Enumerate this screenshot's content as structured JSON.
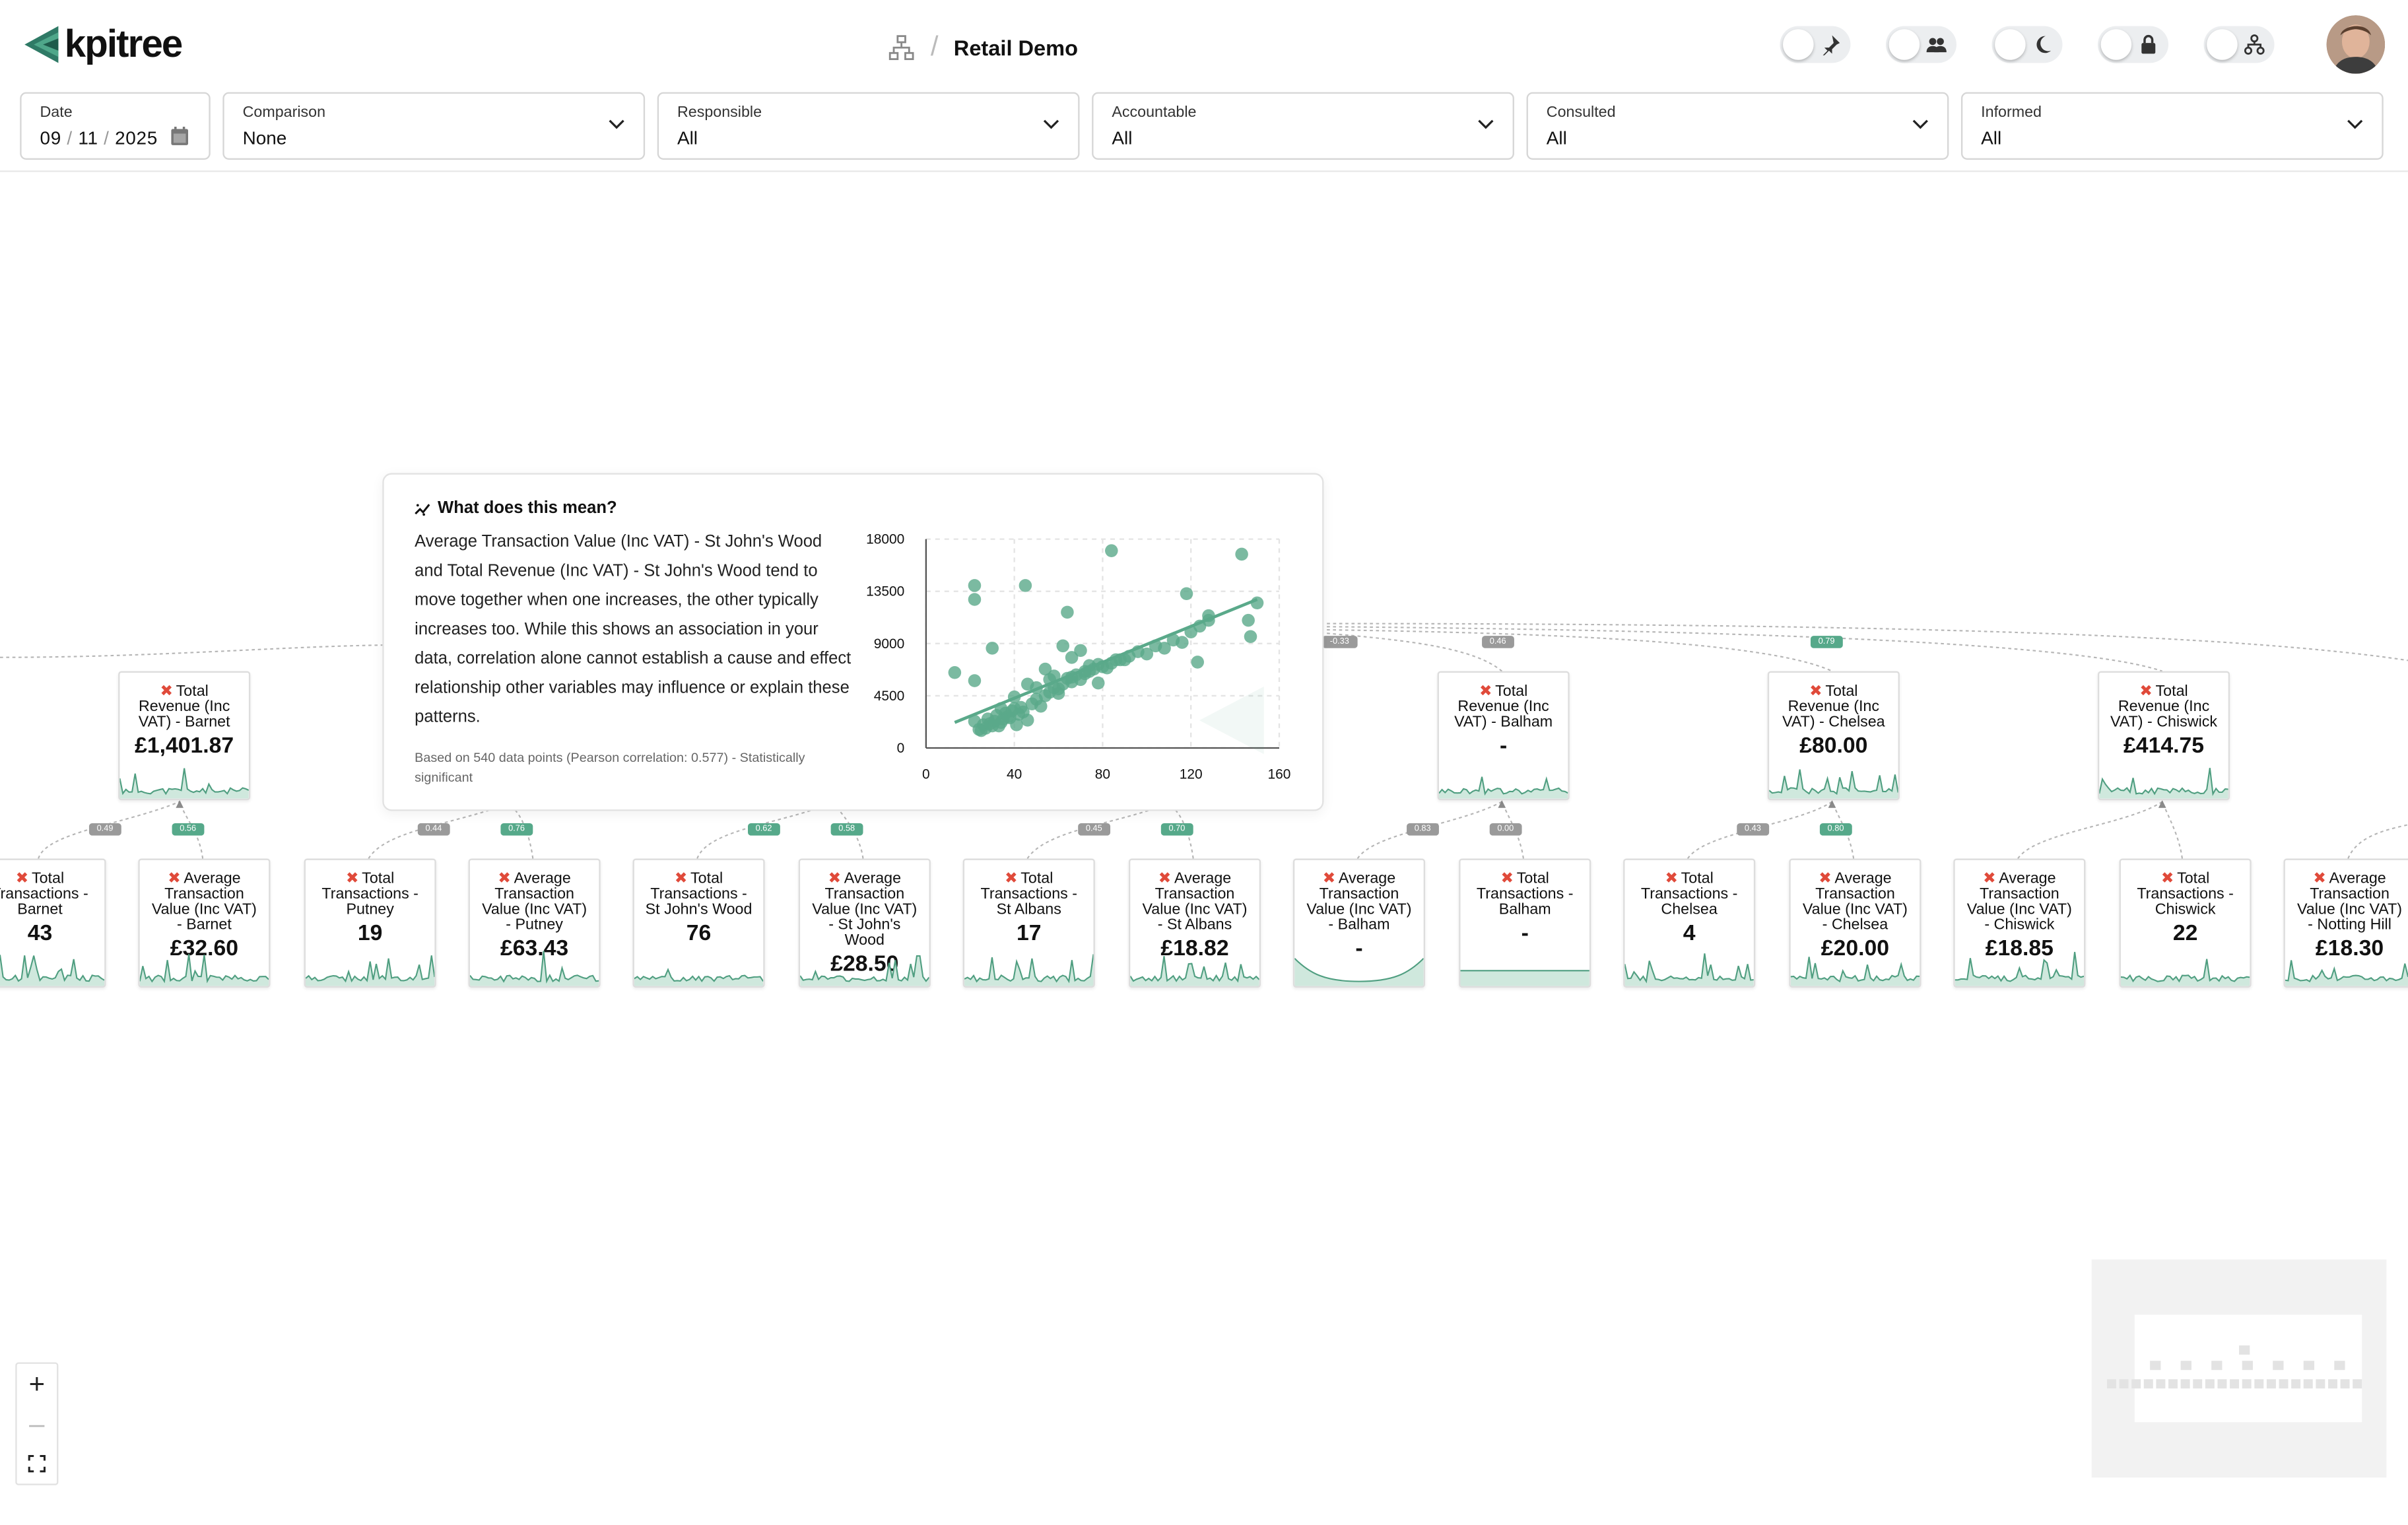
{
  "app": {
    "name": "kpitree"
  },
  "breadcrumb": {
    "title": "Retail Demo"
  },
  "toggles": [
    {
      "name": "pin",
      "icon": "pin-icon"
    },
    {
      "name": "people",
      "icon": "people-icon"
    },
    {
      "name": "dark-mode",
      "icon": "moon-icon"
    },
    {
      "name": "lock",
      "icon": "lock-icon"
    },
    {
      "name": "hierarchy",
      "icon": "hierarchy-icon"
    }
  ],
  "filters": {
    "date": {
      "label": "Date",
      "day": "09",
      "month": "11",
      "year": "2025"
    },
    "comparison": {
      "label": "Comparison",
      "value": "None"
    },
    "responsible": {
      "label": "Responsible",
      "value": "All"
    },
    "accountable": {
      "label": "Accountable",
      "value": "All"
    },
    "consulted": {
      "label": "Consulted",
      "value": "All"
    },
    "informed": {
      "label": "Informed",
      "value": "All"
    }
  },
  "badges": {
    "b1": "-0.33",
    "b2": "0.46",
    "b3": "0.79",
    "b4": "0.49",
    "b5": "0.56",
    "b6": "0.44",
    "b7": "0.76",
    "b8": "0.62",
    "b9": "0.58",
    "b10": "0.45",
    "b11": "0.70",
    "b12": "0.83",
    "b13": "0.00",
    "b14": "0.43",
    "b15": "0.80"
  },
  "nodes": {
    "revenue_barnet": {
      "l1": "Total",
      "l2": "Revenue (Inc",
      "l3": "VAT) - Barnet",
      "value": "£1,401.87"
    },
    "revenue_balham": {
      "l1": "Total",
      "l2": "Revenue (Inc",
      "l3": "VAT) - Balham",
      "value": "-"
    },
    "revenue_chelsea": {
      "l1": "Total",
      "l2": "Revenue (Inc",
      "l3": "VAT) - Chelsea",
      "value": "£80.00"
    },
    "revenue_chiswick": {
      "l1": "Total",
      "l2": "Revenue (Inc",
      "l3": "VAT) - Chiswick",
      "value": "£414.75"
    },
    "tx_barnet": {
      "l1": "Total",
      "l2": "Transactions -",
      "l3": "Barnet",
      "value": "43"
    },
    "atv_barnet": {
      "l1": "Average",
      "l2": "Transaction",
      "l3": "Value (Inc VAT)",
      "l4": "- Barnet",
      "value": "£32.60"
    },
    "tx_putney": {
      "l1": "Total",
      "l2": "Transactions -",
      "l3": "Putney",
      "value": "19"
    },
    "atv_putney": {
      "l1": "Average",
      "l2": "Transaction",
      "l3": "Value (Inc VAT)",
      "l4": "- Putney",
      "value": "£63.43"
    },
    "tx_stjohns": {
      "l1": "Total",
      "l2": "Transactions -",
      "l3": "St John's Wood",
      "value": "76"
    },
    "atv_stjohns": {
      "l1": "Average",
      "l2": "Transaction",
      "l3": "Value (Inc VAT)",
      "l4": "- St John's",
      "l5": "Wood",
      "value": "£28.50"
    },
    "tx_stalbans": {
      "l1": "Total",
      "l2": "Transactions -",
      "l3": "St Albans",
      "value": "17"
    },
    "atv_stalbans": {
      "l1": "Average",
      "l2": "Transaction",
      "l3": "Value (Inc VAT)",
      "l4": "- St Albans",
      "value": "£18.82"
    },
    "atv_balham": {
      "l1": "Average",
      "l2": "Transaction",
      "l3": "Value (Inc VAT)",
      "l4": "- Balham",
      "value": "-"
    },
    "tx_balham": {
      "l1": "Total",
      "l2": "Transactions -",
      "l3": "Balham",
      "value": "-"
    },
    "tx_chelsea": {
      "l1": "Total",
      "l2": "Transactions -",
      "l3": "Chelsea",
      "value": "4"
    },
    "atv_chelsea": {
      "l1": "Average",
      "l2": "Transaction",
      "l3": "Value (Inc VAT)",
      "l4": "- Chelsea",
      "value": "£20.00"
    },
    "atv_chiswick": {
      "l1": "Average",
      "l2": "Transaction",
      "l3": "Value (Inc VAT)",
      "l4": "- Chiswick",
      "value": "£18.85"
    },
    "tx_chiswick": {
      "l1": "Total",
      "l2": "Transactions -",
      "l3": "Chiswick",
      "value": "22"
    },
    "atv_notting": {
      "l1": "Average",
      "l2": "Transaction",
      "l3": "Value (Inc VAT)",
      "l4": "- Notting Hill",
      "value": "£18.30"
    }
  },
  "popup": {
    "heading": "What does this mean?",
    "body": "Average Transaction Value (Inc VAT) - St John's Wood and Total Revenue (Inc VAT) - St John's Wood tend to move together when one increases, the other typically increases too. While this shows an association in your data, correlation alone cannot establish a cause and effect relationship other variables may influence or explain these patterns.",
    "footnote": "Based on 540 data points (Pearson correlation: 0.577) - Statistically significant"
  },
  "chart_data": {
    "type": "scatter",
    "title": "",
    "xlabel": "",
    "ylabel": "",
    "xlim": [
      0,
      160
    ],
    "ylim": [
      0,
      18000
    ],
    "xticks": [
      "0",
      "40",
      "80",
      "120",
      "160"
    ],
    "yticks": [
      "0",
      "4500",
      "9000",
      "13500",
      "18000"
    ],
    "grid": true,
    "trendline": {
      "x1": 13,
      "y1": 2200,
      "x2": 150,
      "y2": 12800
    },
    "points": [
      [
        13,
        6500
      ],
      [
        22,
        5800
      ],
      [
        22,
        14000
      ],
      [
        22,
        12800
      ],
      [
        30,
        8600
      ],
      [
        45,
        14000
      ],
      [
        22,
        2300
      ],
      [
        24,
        1600
      ],
      [
        26,
        2000
      ],
      [
        28,
        2500
      ],
      [
        30,
        1900
      ],
      [
        32,
        2800
      ],
      [
        34,
        2200
      ],
      [
        36,
        3000
      ],
      [
        38,
        2600
      ],
      [
        40,
        3400
      ],
      [
        42,
        2900
      ],
      [
        44,
        3100
      ],
      [
        46,
        2400
      ],
      [
        25,
        1500
      ],
      [
        27,
        1700
      ],
      [
        29,
        2100
      ],
      [
        31,
        2300
      ],
      [
        33,
        1900
      ],
      [
        35,
        2500
      ],
      [
        37,
        2700
      ],
      [
        39,
        3200
      ],
      [
        41,
        2000
      ],
      [
        43,
        3500
      ],
      [
        48,
        3800
      ],
      [
        50,
        4200
      ],
      [
        52,
        3600
      ],
      [
        54,
        4500
      ],
      [
        56,
        4800
      ],
      [
        58,
        5200
      ],
      [
        60,
        4700
      ],
      [
        62,
        5500
      ],
      [
        64,
        6000
      ],
      [
        66,
        5700
      ],
      [
        68,
        6300
      ],
      [
        70,
        5900
      ],
      [
        72,
        6600
      ],
      [
        74,
        7100
      ],
      [
        76,
        6800
      ],
      [
        78,
        7200
      ],
      [
        80,
        7000
      ],
      [
        84,
        7300
      ],
      [
        88,
        7600
      ],
      [
        92,
        7900
      ],
      [
        96,
        8300
      ],
      [
        100,
        8100
      ],
      [
        104,
        8800
      ],
      [
        108,
        8600
      ],
      [
        112,
        9300
      ],
      [
        116,
        9100
      ],
      [
        120,
        10000
      ],
      [
        124,
        10500
      ],
      [
        128,
        11000
      ],
      [
        58,
        6200
      ],
      [
        62,
        8800
      ],
      [
        66,
        7800
      ],
      [
        70,
        8400
      ],
      [
        74,
        6600
      ],
      [
        78,
        5600
      ],
      [
        54,
        6800
      ],
      [
        46,
        5500
      ],
      [
        82,
        6900
      ],
      [
        86,
        7600
      ],
      [
        64,
        11700
      ],
      [
        84,
        17000
      ],
      [
        118,
        13300
      ],
      [
        128,
        11400
      ],
      [
        143,
        16700
      ],
      [
        146,
        11000
      ],
      [
        150,
        12500
      ],
      [
        147,
        9600
      ],
      [
        123,
        7400
      ],
      [
        60,
        5100
      ],
      [
        66,
        6100
      ],
      [
        72,
        6400
      ],
      [
        90,
        7600
      ],
      [
        40,
        4400
      ],
      [
        34,
        3400
      ],
      [
        50,
        5200
      ],
      [
        56,
        5900
      ]
    ]
  }
}
